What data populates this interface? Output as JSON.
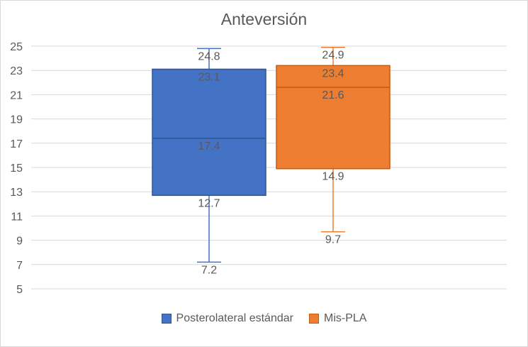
{
  "chart_data": {
    "type": "box",
    "title": "Anteversión",
    "xlabel": "",
    "ylabel": "",
    "ylim": [
      5,
      25
    ],
    "yticks": [
      5,
      7,
      9,
      11,
      13,
      15,
      17,
      19,
      21,
      23,
      25
    ],
    "grid": true,
    "legend_position": "bottom",
    "series": [
      {
        "name": "Posterolateral estándar",
        "color": "#4472C4",
        "border": "#2F5597",
        "min": 7.2,
        "q1": 12.7,
        "median": 17.4,
        "q3": 23.1,
        "max": 24.8
      },
      {
        "name": "Mis-PLA",
        "color": "#ED7D31",
        "border": "#C55A11",
        "min": 9.7,
        "q1": 14.9,
        "median": 21.6,
        "q3": 23.4,
        "max": 24.9
      }
    ]
  }
}
